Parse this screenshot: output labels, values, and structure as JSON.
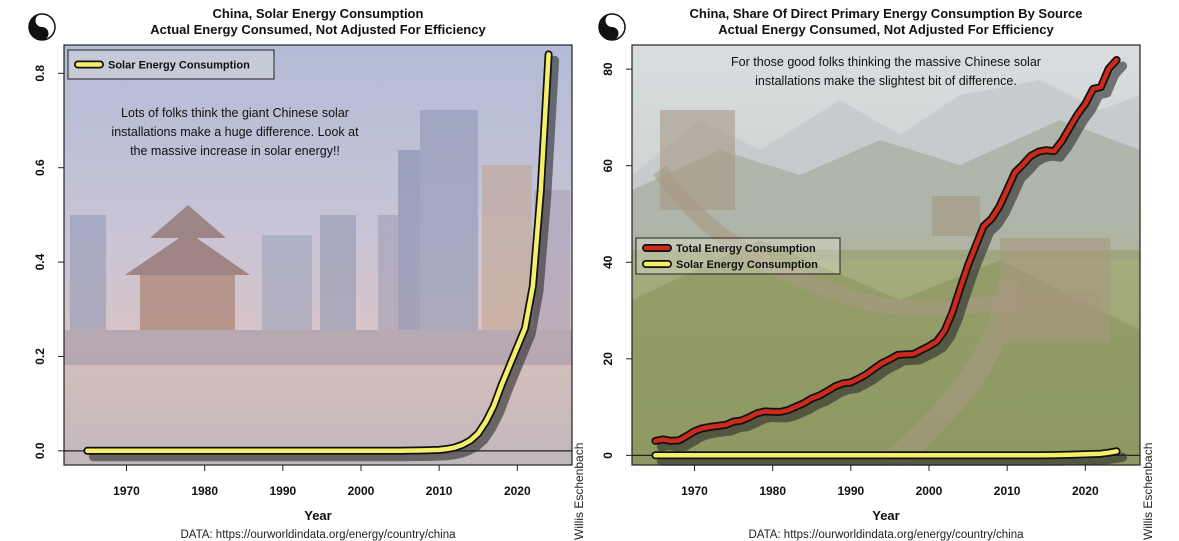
{
  "chart_data": [
    {
      "type": "line",
      "title": "China, Solar Energy Consumption",
      "subtitle": "Actual Energy Consumed, Not Adjusted For Efficiency",
      "xlabel": "Year",
      "ylabel": "",
      "xlim": [
        1962,
        2027
      ],
      "ylim": [
        -0.03,
        0.86
      ],
      "xticks": [
        1970,
        1980,
        1990,
        2000,
        2010,
        2020
      ],
      "yticks": [
        0.0,
        0.2,
        0.4,
        0.6,
        0.8
      ],
      "ytick_labels": [
        "0.0",
        "0.2",
        "0.4",
        "0.6",
        "0.8"
      ],
      "legend": [
        "Solar Energy Consumption"
      ],
      "annotation": "Lots of folks think the giant Chinese solar installations make a huge difference. Look at the massive increase in solar energy!!",
      "source": "DATA: https://ourworldindata.org/energy/country/china",
      "series": [
        {
          "name": "Solar Energy Consumption",
          "color": "#f5ee6a",
          "x": [
            1965,
            1970,
            1975,
            1980,
            1985,
            1990,
            1995,
            2000,
            2005,
            2008,
            2010,
            2011,
            2012,
            2013,
            2014,
            2015,
            2016,
            2017,
            2018,
            2019,
            2020,
            2021,
            2022,
            2023,
            2024
          ],
          "values": [
            0,
            0,
            0,
            0,
            0,
            0,
            0,
            0,
            0,
            0.001,
            0.002,
            0.004,
            0.007,
            0.013,
            0.022,
            0.037,
            0.062,
            0.095,
            0.14,
            0.18,
            0.22,
            0.26,
            0.35,
            0.55,
            0.84
          ]
        }
      ]
    },
    {
      "type": "line",
      "title": "China, Share Of Direct Primary Energy Consumption By Source",
      "subtitle": "Actual Energy Consumed, Not Adjusted For Efficiency",
      "xlabel": "Year",
      "ylabel": "",
      "xlim": [
        1962,
        2027
      ],
      "ylim": [
        -2,
        85
      ],
      "xticks": [
        1970,
        1980,
        1990,
        2000,
        2010,
        2020
      ],
      "yticks": [
        0,
        20,
        40,
        60,
        80
      ],
      "ytick_labels": [
        "0",
        "20",
        "40",
        "60",
        "80"
      ],
      "legend": [
        "Total Energy Consumption",
        "Solar Energy Consumption"
      ],
      "annotation": "For those good folks thinking the massive Chinese solar installations make the slightest bit of difference.",
      "source": "DATA: https://ourworldindata.org/energy/country/china",
      "series": [
        {
          "name": "Total Energy Consumption",
          "color": "#cc2a1a",
          "x": [
            1965,
            1966,
            1967,
            1968,
            1969,
            1970,
            1971,
            1972,
            1973,
            1974,
            1975,
            1976,
            1977,
            1978,
            1979,
            1980,
            1981,
            1982,
            1983,
            1984,
            1985,
            1986,
            1987,
            1988,
            1989,
            1990,
            1991,
            1992,
            1993,
            1994,
            1995,
            1996,
            1997,
            1998,
            1999,
            2000,
            2001,
            2002,
            2003,
            2004,
            2005,
            2006,
            2007,
            2008,
            2009,
            2010,
            2011,
            2012,
            2013,
            2014,
            2015,
            2016,
            2017,
            2018,
            2019,
            2020,
            2021,
            2022,
            2023,
            2024
          ],
          "values": [
            3.0,
            3.3,
            3.0,
            3.1,
            4.0,
            5.0,
            5.6,
            5.9,
            6.1,
            6.3,
            7.0,
            7.2,
            7.9,
            8.7,
            9.1,
            9.0,
            9.0,
            9.4,
            10.1,
            10.8,
            11.8,
            12.4,
            13.3,
            14.3,
            14.9,
            15.1,
            15.9,
            16.8,
            18.0,
            19.1,
            19.9,
            20.8,
            20.9,
            21.0,
            21.8,
            22.6,
            23.6,
            25.8,
            29.6,
            34.6,
            39.4,
            43.5,
            47.5,
            49.0,
            51.5,
            55.0,
            58.6,
            60.2,
            62.0,
            62.9,
            63.2,
            63.0,
            65.1,
            67.9,
            70.6,
            72.8,
            75.9,
            76.3,
            80.1,
            81.9
          ]
        },
        {
          "name": "Solar Energy Consumption",
          "color": "#f5ee6a",
          "x": [
            1965,
            1970,
            1975,
            1980,
            1985,
            1990,
            1995,
            2000,
            2005,
            2010,
            2012,
            2014,
            2016,
            2018,
            2020,
            2022,
            2023,
            2024
          ],
          "values": [
            0,
            0,
            0,
            0,
            0,
            0,
            0,
            0,
            0,
            0,
            0.01,
            0.02,
            0.06,
            0.14,
            0.22,
            0.35,
            0.55,
            0.84
          ]
        }
      ]
    }
  ],
  "author": "Willis Eschenbach",
  "colors": {
    "frame": "#222222",
    "shadow": "#2c2c2c",
    "total": "#cc2a1a",
    "solar": "#f5ee6a"
  }
}
